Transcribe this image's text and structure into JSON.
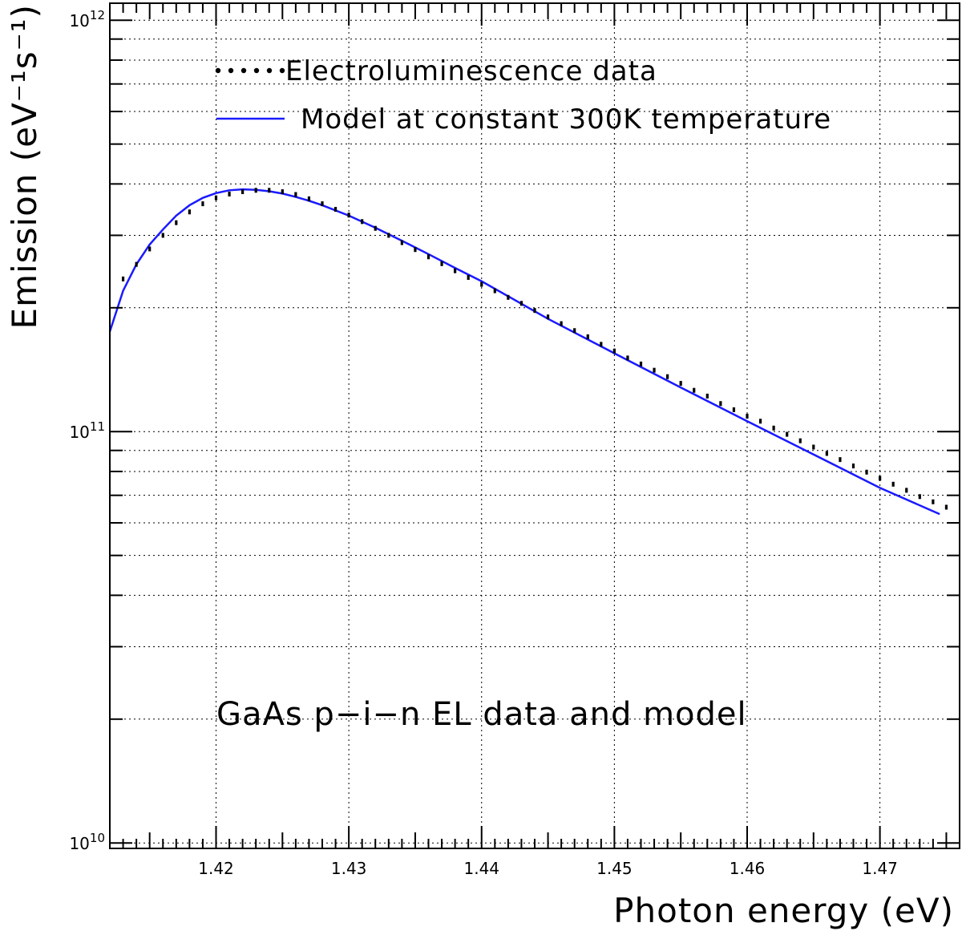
{
  "chart_data": {
    "type": "line",
    "xlabel": "Photon energy (eV)",
    "ylabel": "Emission (eV⁻¹s⁻¹)",
    "xlim": [
      1.412,
      1.476
    ],
    "ylim": [
      9700000000.0,
      1100000000000.0
    ],
    "y_scale": "log",
    "grid": true,
    "x_ticks": [
      "1.42",
      "1.43",
      "1.44",
      "1.45",
      "1.46",
      "1.47"
    ],
    "y_ticks": [
      {
        "base": "10",
        "exp": "10"
      },
      {
        "base": "10",
        "exp": "11"
      },
      {
        "base": "10",
        "exp": "12"
      }
    ],
    "legend": {
      "placement": "top",
      "entries": [
        {
          "label": "Electroluminescence data",
          "style": "dots"
        },
        {
          "label": "Model at constant 300K temperature",
          "style": "line"
        }
      ]
    },
    "annotation": "GaAs p−i−n EL data and model",
    "colors": {
      "data": "#000000",
      "model": "#1a1aff"
    },
    "series": [
      {
        "style": "dots",
        "x": [
          1.413,
          1.414,
          1.415,
          1.416,
          1.417,
          1.418,
          1.419,
          1.42,
          1.421,
          1.422,
          1.423,
          1.424,
          1.425,
          1.426,
          1.427,
          1.428,
          1.429,
          1.43,
          1.431,
          1.432,
          1.433,
          1.434,
          1.435,
          1.436,
          1.437,
          1.438,
          1.439,
          1.44,
          1.441,
          1.442,
          1.443,
          1.444,
          1.445,
          1.446,
          1.447,
          1.448,
          1.449,
          1.45,
          1.451,
          1.452,
          1.453,
          1.454,
          1.455,
          1.456,
          1.457,
          1.458,
          1.459,
          1.46,
          1.461,
          1.462,
          1.463,
          1.464,
          1.465,
          1.466,
          1.467,
          1.468,
          1.469,
          1.47,
          1.471,
          1.472,
          1.473,
          1.474,
          1.475
        ],
        "values": [
          235000000000.0,
          255000000000.0,
          278000000000.0,
          300000000000.0,
          322000000000.0,
          342000000000.0,
          358000000000.0,
          370000000000.0,
          378000000000.0,
          383000000000.0,
          386000000000.0,
          386000000000.0,
          383000000000.0,
          377000000000.0,
          368000000000.0,
          358000000000.0,
          347000000000.0,
          336000000000.0,
          324000000000.0,
          312000000000.0,
          300000000000.0,
          288000000000.0,
          277000000000.0,
          266000000000.0,
          256000000000.0,
          246000000000.0,
          237000000000.0,
          228000000000.0,
          220000000000.0,
          212000000000.0,
          205000000000.0,
          197000000000.0,
          190000000000.0,
          183000000000.0,
          176000000000.0,
          170000000000.0,
          163000000000.0,
          157000000000.0,
          151000000000.0,
          146000000000.0,
          141000000000.0,
          136000000000.0,
          131000000000.0,
          126000000000.0,
          122000000000.0,
          117000000000.0,
          113000000000.0,
          109000000000.0,
          106000000000.0,
          102000000000.0,
          98500000000.0,
          95000000000.0,
          91700000000.0,
          88500000000.0,
          85500000000.0,
          82500000000.0,
          79700000000.0,
          77000000000.0,
          74500000000.0,
          72000000000.0,
          69500000000.0,
          67500000000.0,
          65500000000.0
        ]
      },
      {
        "style": "line",
        "x": [
          1.412,
          1.413,
          1.414,
          1.415,
          1.416,
          1.417,
          1.418,
          1.419,
          1.42,
          1.421,
          1.422,
          1.423,
          1.424,
          1.425,
          1.426,
          1.427,
          1.428,
          1.43,
          1.432,
          1.434,
          1.436,
          1.438,
          1.44,
          1.445,
          1.45,
          1.455,
          1.46,
          1.465,
          1.47,
          1.4745
        ],
        "values": [
          175000000000.0,
          220000000000.0,
          255000000000.0,
          285000000000.0,
          310000000000.0,
          335000000000.0,
          355000000000.0,
          370000000000.0,
          380000000000.0,
          386000000000.0,
          388000000000.0,
          387000000000.0,
          384000000000.0,
          379000000000.0,
          372000000000.0,
          364000000000.0,
          355000000000.0,
          335000000000.0,
          313000000000.0,
          291000000000.0,
          270000000000.0,
          250000000000.0,
          232000000000.0,
          188000000000.0,
          155000000000.0,
          128000000000.0,
          106000000000.0,
          88000000000.0,
          73000000000.0,
          63000000000.0
        ]
      }
    ]
  }
}
